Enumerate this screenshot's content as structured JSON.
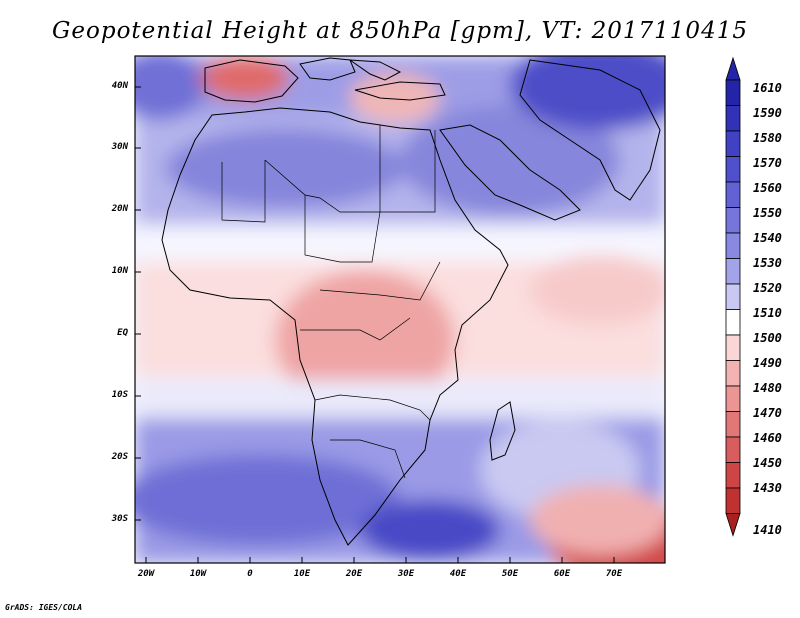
{
  "title": "Geopotential Height at 850hPa [gpm], VT: 2017110415",
  "credit": "GrADS: IGES/COLA",
  "map": {
    "lat_labels": [
      "40N",
      "30N",
      "20N",
      "10N",
      "EQ",
      "10S",
      "20S",
      "30S"
    ],
    "lat_values": [
      40,
      30,
      20,
      10,
      0,
      -10,
      -20,
      -30
    ],
    "lon_labels": [
      "20W",
      "10W",
      "0",
      "10E",
      "20E",
      "30E",
      "40E",
      "50E",
      "60E",
      "70E"
    ],
    "lon_values": [
      -20,
      -10,
      0,
      10,
      20,
      30,
      40,
      50,
      60,
      70
    ],
    "lat_range": [
      -37,
      45
    ],
    "lon_range": [
      -22,
      80
    ]
  },
  "colorbar": {
    "labels": [
      "1610",
      "1590",
      "1580",
      "1570",
      "1560",
      "1550",
      "1540",
      "1530",
      "1520",
      "1510",
      "1500",
      "1490",
      "1480",
      "1470",
      "1460",
      "1450",
      "1430",
      "1410"
    ],
    "colors": [
      "#2424a8",
      "#3232b8",
      "#4141c4",
      "#5050cc",
      "#6262d4",
      "#7575dc",
      "#8989e2",
      "#a3a3ea",
      "#c8c8f2",
      "#ffffff",
      "#fad6d6",
      "#f3b3b3",
      "#eb9595",
      "#e17777",
      "#d85e5e",
      "#cf4545",
      "#c03232",
      "#a82020"
    ]
  }
}
